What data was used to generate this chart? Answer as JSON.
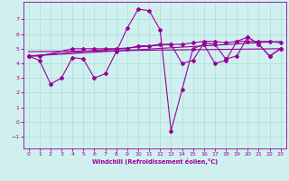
{
  "title": "",
  "xlabel": "Windchill (Refroidissement éolien,°C)",
  "bg_color": "#cff0ee",
  "grid_color": "#aadddd",
  "line_color": "#990099",
  "xlim": [
    -0.5,
    23.5
  ],
  "ylim": [
    -1.8,
    8.2
  ],
  "xticks": [
    0,
    1,
    2,
    3,
    4,
    5,
    6,
    7,
    8,
    9,
    10,
    11,
    12,
    13,
    14,
    15,
    16,
    17,
    18,
    19,
    20,
    21,
    22,
    23
  ],
  "yticks": [
    -1,
    0,
    1,
    2,
    3,
    4,
    5,
    6,
    7
  ],
  "line1_x": [
    0,
    1,
    2,
    3,
    4,
    5,
    6,
    7,
    8,
    9,
    10,
    11,
    12,
    13,
    14,
    15,
    16,
    17,
    18,
    19,
    20,
    21,
    22,
    23
  ],
  "line1_y": [
    4.5,
    4.2,
    2.6,
    3.0,
    4.4,
    4.3,
    3.0,
    3.3,
    4.8,
    6.4,
    7.7,
    7.6,
    6.3,
    -0.6,
    2.2,
    5.0,
    5.3,
    4.0,
    4.2,
    5.5,
    5.8,
    5.3,
    4.5,
    5.0
  ],
  "line2_x": [
    0,
    23
  ],
  "line2_y": [
    4.5,
    5.5
  ],
  "line3_x": [
    0,
    23
  ],
  "line3_y": [
    4.8,
    5.0
  ],
  "line4_x": [
    0,
    1,
    4,
    5,
    6,
    7,
    8,
    9,
    10,
    11,
    12,
    13,
    14,
    15,
    16,
    17,
    18,
    19,
    20,
    21,
    22,
    23
  ],
  "line4_y": [
    4.5,
    4.5,
    5.0,
    5.0,
    5.0,
    5.0,
    5.0,
    5.0,
    5.2,
    5.2,
    5.3,
    5.3,
    5.3,
    5.4,
    5.5,
    5.5,
    5.4,
    5.5,
    5.5,
    5.5,
    5.5,
    5.4
  ],
  "line5_x": [
    0,
    13,
    14,
    15,
    16,
    17,
    18,
    19,
    20,
    21,
    22,
    23
  ],
  "line5_y": [
    4.5,
    5.3,
    4.0,
    4.2,
    5.4,
    5.3,
    4.3,
    4.5,
    5.8,
    5.3,
    4.5,
    5.0
  ]
}
